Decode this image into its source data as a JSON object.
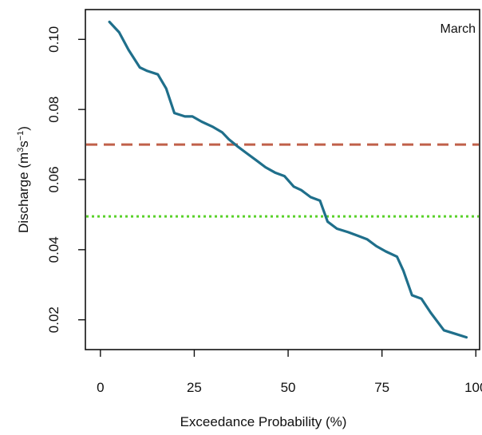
{
  "chart_data": {
    "type": "line",
    "title": "",
    "annotation": "March",
    "xlabel": "Exceedance Probability (%)",
    "ylabel": "Discharge (m³s⁻¹)",
    "ylabel_parts": {
      "main": "Discharge (m",
      "sup1": "3",
      "mid": "s",
      "sup2": "−1",
      "end": ")"
    },
    "xlim": [
      -4,
      101
    ],
    "ylim": [
      0.0115,
      0.1085
    ],
    "x_ticks": [
      0,
      25,
      50,
      75,
      100
    ],
    "x_tick_labels": [
      "0",
      "25",
      "50",
      "75",
      "100"
    ],
    "y_ticks": [
      0.02,
      0.04,
      0.06,
      0.08,
      0.1
    ],
    "y_tick_labels": [
      "0.02",
      "0.04",
      "0.06",
      "0.08",
      "0.10"
    ],
    "grid": false,
    "series": [
      {
        "color": "#1f6f8b",
        "x": [
          2.4,
          5.0,
          7.5,
          10.5,
          12.5,
          15.3,
          17.5,
          19.7,
          22.5,
          24.5,
          27.0,
          30.0,
          32.4,
          34.2,
          36.5,
          39.0,
          41.5,
          44.0,
          46.5,
          49.0,
          51.5,
          53.5,
          56.0,
          58.5,
          60.5,
          63.0,
          66.0,
          68.5,
          71.0,
          73.5,
          76.0,
          79.0,
          80.7,
          83.0,
          85.5,
          88.0,
          91.5,
          94.5,
          97.5
        ],
        "y": [
          0.105,
          0.102,
          0.097,
          0.092,
          0.091,
          0.09,
          0.086,
          0.079,
          0.078,
          0.078,
          0.0765,
          0.075,
          0.0735,
          0.0715,
          0.0695,
          0.0675,
          0.0655,
          0.0635,
          0.062,
          0.061,
          0.058,
          0.057,
          0.055,
          0.054,
          0.048,
          0.046,
          0.045,
          0.044,
          0.043,
          0.041,
          0.0395,
          0.038,
          0.034,
          0.027,
          0.026,
          0.022,
          0.017,
          0.016,
          0.015
        ]
      }
    ],
    "reference_lines": [
      {
        "y": 0.07,
        "color": "#c0604a",
        "style": "dashed"
      },
      {
        "y": 0.0495,
        "color": "#5ad12a",
        "style": "dotted"
      }
    ]
  }
}
